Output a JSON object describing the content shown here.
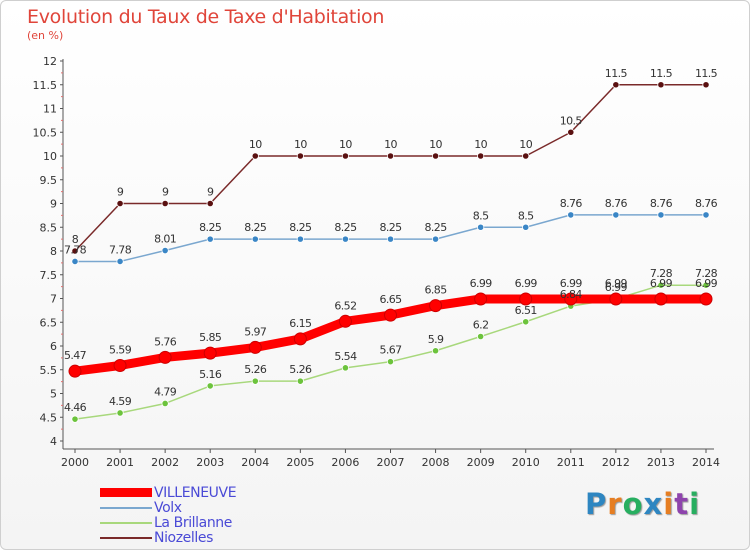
{
  "chart_data": {
    "type": "line",
    "title": "Evolution du Taux de Taxe d'Habitation",
    "ylabel": "(en %)",
    "xlabel": "",
    "x": [
      2000,
      2001,
      2002,
      2003,
      2004,
      2005,
      2006,
      2007,
      2008,
      2009,
      2010,
      2011,
      2012,
      2013,
      2014
    ],
    "ylim": [
      4,
      12
    ],
    "yticks": [
      "4",
      "4.5",
      "5",
      "5.5",
      "6",
      "6.5",
      "7",
      "7.5",
      "8",
      "8.5",
      "9",
      "9.5",
      "10",
      "10.5",
      "11",
      "11.5",
      "12"
    ],
    "grid": false,
    "legend_position": "bottom-left",
    "series": [
      {
        "name": "VILLENEUVE",
        "color": "#ff0000",
        "marker_color": "#ff0000",
        "values": [
          5.47,
          5.59,
          5.76,
          5.85,
          5.97,
          6.15,
          6.52,
          6.65,
          6.85,
          6.99,
          6.99,
          6.99,
          6.99,
          6.99,
          6.99
        ],
        "labels": [
          "5.47",
          "5.59",
          "5.76",
          "5.85",
          "5.97",
          "6.15",
          "6.52",
          "6.65",
          "6.85",
          "6.99",
          "6.99",
          "6.99",
          "6.99",
          "6.99",
          "6.99"
        ]
      },
      {
        "name": "Volx",
        "color": "#7aa7cf",
        "marker_color": "#3a86c6",
        "values": [
          7.78,
          7.78,
          8.01,
          8.25,
          8.25,
          8.25,
          8.25,
          8.25,
          8.25,
          8.5,
          8.5,
          8.76,
          8.76,
          8.76,
          8.76
        ],
        "labels": [
          "7.78",
          "7.78",
          "8.01",
          "8.25",
          "8.25",
          "8.25",
          "8.25",
          "8.25",
          "8.25",
          "8.5",
          "8.5",
          "8.76",
          "8.76",
          "8.76",
          "8.76"
        ]
      },
      {
        "name": "La Brillanne",
        "color": "#a8d87c",
        "marker_color": "#6cc33c",
        "values": [
          4.46,
          4.59,
          4.79,
          5.16,
          5.26,
          5.26,
          5.54,
          5.67,
          5.9,
          6.2,
          6.51,
          6.84,
          6.99,
          7.28,
          7.28
        ],
        "labels": [
          "4.46",
          "4.59",
          "4.79",
          "5.16",
          "5.26",
          "5.26",
          "5.54",
          "5.67",
          "5.9",
          "6.2",
          "6.51",
          "6.84",
          "6.99",
          "7.28",
          "7.28"
        ]
      },
      {
        "name": "Niozelles",
        "color": "#7a2a2a",
        "marker_color": "#5a1010",
        "values": [
          8,
          9,
          9,
          9,
          10,
          10,
          10,
          10,
          10,
          10,
          10,
          10.5,
          11.5,
          11.5,
          11.5
        ],
        "labels": [
          "8",
          "9",
          "9",
          "9",
          "10",
          "10",
          "10",
          "10",
          "10",
          "10",
          "10",
          "10.5",
          "11.5",
          "11.5",
          "11.5"
        ]
      }
    ]
  },
  "brand": {
    "letters": [
      "P",
      "r",
      "o",
      "x",
      "i",
      "t",
      "i"
    ],
    "colors": [
      "#2e86c1",
      "#e67e22",
      "#27ae60",
      "#2e86c1",
      "#e67e22",
      "#8e44ad",
      "#27ae60"
    ]
  }
}
